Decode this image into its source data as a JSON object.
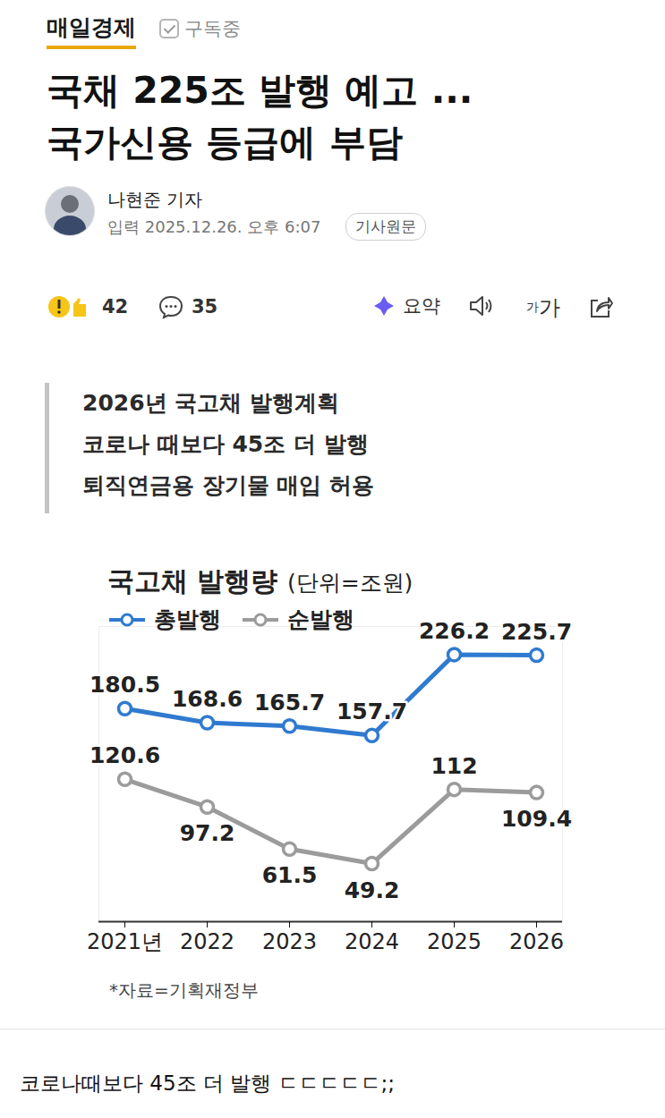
{
  "header": {
    "publisher": "매일경제",
    "subscribe": "구독중"
  },
  "title": "국채 225조 발행 예고 ... 국가신용 등급에 부담",
  "byline": {
    "reporter": "나현준 기자",
    "date": "입력 2025.12.26. 오후 6:07",
    "original": "기사원문"
  },
  "toolbar": {
    "reactions": 42,
    "comments": 35,
    "summary": "요약",
    "font": "가가"
  },
  "highlights": [
    "2026년 국고채 발행계획",
    "코로나 때보다 45조 더 발행",
    "퇴직연금용 장기물 매입 허용"
  ],
  "chart_data": {
    "type": "line",
    "title": "국고채 발행량",
    "subtitle": "(단위=조원)",
    "categories": [
      "2021년",
      "2022",
      "2023",
      "2024",
      "2025",
      "2026"
    ],
    "series": [
      {
        "name": "총발행",
        "color": "#2f7ad0",
        "values": [
          180.5,
          168.6,
          165.7,
          157.7,
          226.2,
          225.7
        ]
      },
      {
        "name": "순발행",
        "color": "#9b9b9b",
        "values": [
          120.6,
          97.2,
          61.5,
          49.2,
          112,
          109.4
        ]
      }
    ],
    "ylim": [
      0,
      250
    ],
    "yticks": [],
    "tick_labels": "x",
    "data_labels": true,
    "marker": "circle",
    "legend": "top-left",
    "annotations": [
      "*자료=기획재정부"
    ]
  },
  "comment": "코로나때보다 45조 더 발행 ㄷㄷㄷㄷㄷ;;"
}
